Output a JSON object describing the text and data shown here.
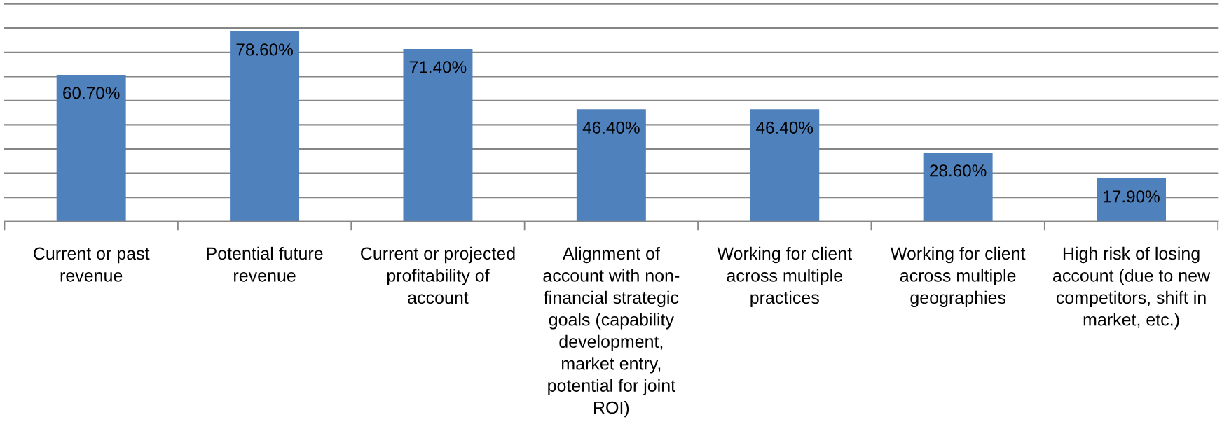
{
  "chart_data": {
    "type": "bar",
    "categories": [
      "Current or past\nrevenue",
      "Potential future\nrevenue",
      "Current or projected\nprofitability of\naccount",
      "Alignment of\naccount with non-\nfinancial strategic\ngoals (capability\ndevelopment,\nmarket entry,\npotential for joint\nROI)",
      "Working for client\nacross multiple\npractices",
      "Working for client\nacross multiple\ngeographies",
      "High risk of losing\naccount (due to new\ncompetitors, shift in\nmarket, etc.)"
    ],
    "values": [
      60.7,
      78.6,
      71.4,
      46.4,
      46.4,
      28.6,
      17.9
    ],
    "value_labels": [
      "60.70%",
      "78.60%",
      "71.40%",
      "46.40%",
      "46.40%",
      "28.60%",
      "17.90%"
    ],
    "color": "#4f81bd",
    "ylim": [
      0,
      90
    ],
    "yticks": [
      {
        "value": 0,
        "label": null
      },
      {
        "value": 10,
        "label": null
      },
      {
        "value": 20,
        "label": null
      },
      {
        "value": 30,
        "label": null
      },
      {
        "value": 40,
        "label": null
      },
      {
        "value": 50,
        "label": null
      },
      {
        "value": 60,
        "label": null
      },
      {
        "value": 70,
        "label": null
      },
      {
        "value": 80,
        "label": null
      },
      {
        "value": 90,
        "label": null
      }
    ],
    "grid": "y",
    "tick_labels": "x"
  }
}
